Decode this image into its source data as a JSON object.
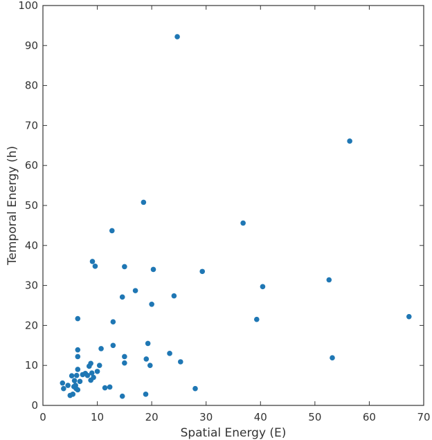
{
  "chart_data": {
    "type": "scatter",
    "title": "",
    "xlabel": "Spatial Energy (E)",
    "ylabel": "Temporal Energy (h)",
    "xlim": [
      0,
      70
    ],
    "ylim": [
      0,
      100
    ],
    "x_ticks": [
      0,
      10,
      20,
      30,
      40,
      50,
      60,
      70
    ],
    "y_ticks": [
      0,
      10,
      20,
      30,
      40,
      50,
      60,
      70,
      80,
      90,
      100
    ],
    "x_tick_labels": [
      "0",
      "10",
      "20",
      "30",
      "40",
      "50",
      "60",
      "70"
    ],
    "y_tick_labels": [
      "0",
      "10",
      "20",
      "30",
      "40",
      "50",
      "60",
      "70",
      "80",
      "90",
      "100"
    ],
    "grid": false,
    "marker_color": "#1f77b4",
    "series": [
      {
        "points": [
          [
            3.6,
            5.6
          ],
          [
            3.8,
            4.2
          ],
          [
            4.6,
            5.0
          ],
          [
            5.0,
            2.5
          ],
          [
            5.3,
            7.4
          ],
          [
            5.5,
            2.8
          ],
          [
            5.7,
            4.7
          ],
          [
            5.8,
            6.2
          ],
          [
            6.0,
            5.0
          ],
          [
            6.1,
            4.2
          ],
          [
            6.2,
            7.5
          ],
          [
            6.4,
            3.9
          ],
          [
            6.4,
            9.0
          ],
          [
            6.4,
            12.2
          ],
          [
            6.4,
            13.9
          ],
          [
            6.4,
            21.7
          ],
          [
            6.8,
            6.0
          ],
          [
            7.3,
            7.7
          ],
          [
            7.8,
            8.0
          ],
          [
            8.2,
            7.5
          ],
          [
            8.5,
            9.8
          ],
          [
            8.8,
            6.3
          ],
          [
            8.8,
            10.5
          ],
          [
            9.0,
            8.1
          ],
          [
            9.1,
            36.0
          ],
          [
            9.3,
            7.0
          ],
          [
            9.6,
            34.8
          ],
          [
            10.0,
            8.5
          ],
          [
            10.4,
            10.0
          ],
          [
            10.7,
            14.2
          ],
          [
            11.4,
            4.4
          ],
          [
            12.3,
            4.6
          ],
          [
            12.7,
            43.7
          ],
          [
            12.9,
            15.0
          ],
          [
            12.9,
            20.9
          ],
          [
            14.6,
            27.1
          ],
          [
            14.6,
            2.3
          ],
          [
            15.0,
            12.2
          ],
          [
            15.0,
            10.6
          ],
          [
            15.0,
            34.7
          ],
          [
            17.0,
            28.7
          ],
          [
            18.5,
            50.8
          ],
          [
            18.9,
            2.8
          ],
          [
            19.0,
            11.6
          ],
          [
            19.3,
            15.5
          ],
          [
            19.7,
            10.0
          ],
          [
            20.0,
            25.3
          ],
          [
            20.3,
            34.0
          ],
          [
            23.3,
            13.0
          ],
          [
            24.1,
            27.4
          ],
          [
            24.7,
            92.2
          ],
          [
            25.3,
            10.9
          ],
          [
            28.0,
            4.2
          ],
          [
            29.3,
            33.5
          ],
          [
            36.8,
            45.6
          ],
          [
            39.3,
            21.5
          ],
          [
            40.4,
            29.7
          ],
          [
            52.6,
            31.4
          ],
          [
            53.2,
            11.9
          ],
          [
            56.4,
            66.1
          ],
          [
            67.3,
            22.2
          ]
        ]
      }
    ]
  }
}
